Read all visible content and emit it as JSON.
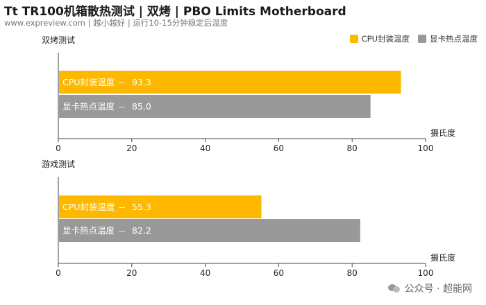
{
  "title": "Tt TR100机箱散热测试 | 双烤 | PBO Limits Motherboard",
  "subtitle": "www.expreview.com | 越小越好 | 运行10-15分钟稳定后温度",
  "legend": [
    {
      "name": "CPU封装温度",
      "color": "#FFB800"
    },
    {
      "name": "显卡热点温度",
      "color": "#999999"
    }
  ],
  "watermark": "公众号 · 超能网",
  "chart_data": [
    {
      "type": "bar",
      "orientation": "horizontal",
      "title": "双烤测试",
      "xlabel": "摄氏度",
      "xlim": [
        0,
        100
      ],
      "xticks": [
        0,
        20,
        40,
        60,
        80,
        100
      ],
      "grid": false,
      "bars": [
        {
          "label": "CPU封装温度",
          "separator": "--",
          "value": 93.3,
          "value_text": "93.3",
          "color": "#FFB800"
        },
        {
          "label": "显卡热点温度",
          "separator": "--",
          "value": 85.0,
          "value_text": "85.0",
          "color": "#999999"
        }
      ]
    },
    {
      "type": "bar",
      "orientation": "horizontal",
      "title": "游戏测试",
      "xlabel": "摄氏度",
      "xlim": [
        0,
        100
      ],
      "xticks": [
        0,
        20,
        40,
        60,
        80,
        100
      ],
      "grid": false,
      "bars": [
        {
          "label": "CPU封装温度",
          "separator": "--",
          "value": 55.3,
          "value_text": "55.3",
          "color": "#FFB800"
        },
        {
          "label": "显卡热点温度",
          "separator": "--",
          "value": 82.2,
          "value_text": "82.2",
          "color": "#999999"
        }
      ]
    }
  ]
}
